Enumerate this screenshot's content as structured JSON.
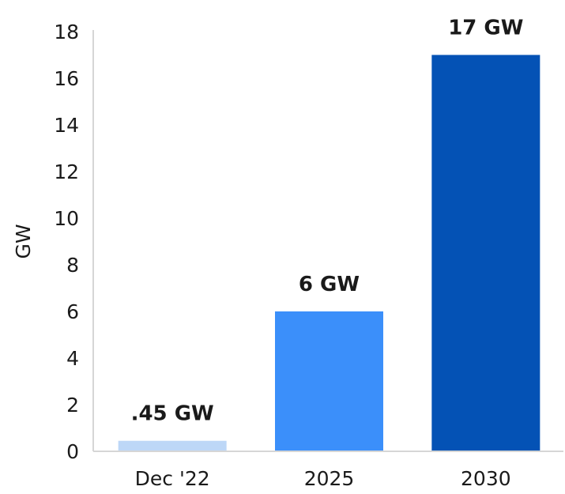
{
  "chart_data": {
    "type": "bar",
    "title": "",
    "xlabel": "",
    "ylabel": "GW",
    "ylim": [
      0,
      18
    ],
    "yticks": [
      "0",
      "2",
      "4",
      "6",
      "8",
      "10",
      "12",
      "14",
      "16",
      "18"
    ],
    "categories": [
      "Dec '22",
      "2025",
      "2030"
    ],
    "values": [
      0.45,
      6,
      17
    ],
    "data_labels": [
      ".45 GW",
      "6 GW",
      "17 GW"
    ],
    "bar_colors": [
      "#bdd7f7",
      "#3b8ffa",
      "#0452b5"
    ],
    "grid": false,
    "legend": "none"
  }
}
